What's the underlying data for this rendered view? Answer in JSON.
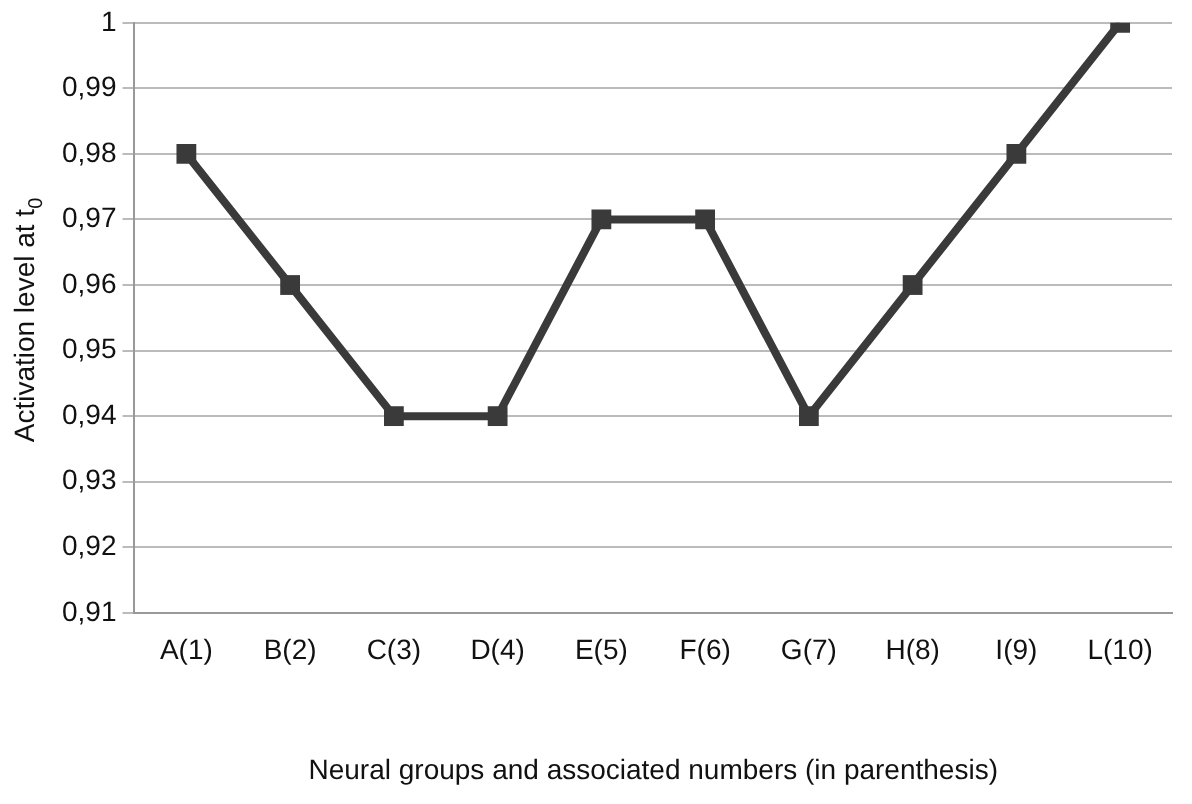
{
  "chart_data": {
    "type": "line",
    "xlabel": "Neural groups and associated numbers (in parenthesis)",
    "ylabel": "Activation level at t$_{0}$",
    "categories": [
      "A(1)",
      "B(2)",
      "C(3)",
      "D(4)",
      "E(5)",
      "F(6)",
      "G(7)",
      "H(8)",
      "I(9)",
      "L(10)"
    ],
    "series": [
      {
        "color": "#3a3a3a",
        "values": [
          0.98,
          0.96,
          0.94,
          0.94,
          0.97,
          0.97,
          0.94,
          0.96,
          0.98,
          1.0
        ]
      }
    ],
    "ylim": [
      0.91,
      1
    ],
    "yticks": [
      {
        "value": 0.91,
        "label": "0,91"
      },
      {
        "value": 0.92,
        "label": "0,92"
      },
      {
        "value": 0.93,
        "label": "0,93"
      },
      {
        "value": 0.94,
        "label": "0,94"
      },
      {
        "value": 0.95,
        "label": "0,95"
      },
      {
        "value": 0.96,
        "label": "0,96"
      },
      {
        "value": 0.97,
        "label": "0,97"
      },
      {
        "value": 0.98,
        "label": "0,98"
      },
      {
        "value": 0.99,
        "label": "0,99"
      },
      {
        "value": 1,
        "label": "1"
      }
    ],
    "grid": "y",
    "legend": false,
    "marker": "square",
    "line_style": "solid"
  }
}
